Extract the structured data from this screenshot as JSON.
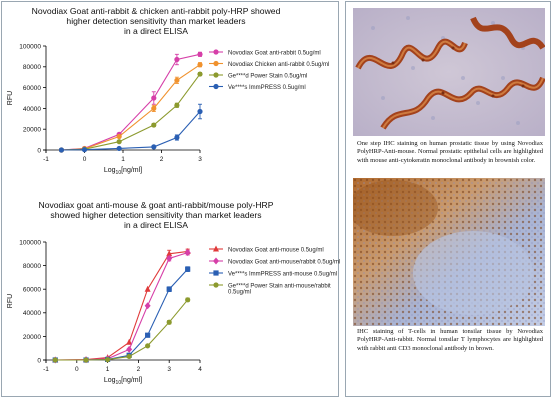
{
  "charts": [
    {
      "title_lines": [
        "Novodiax Goat anti-rabbit & chicken anti-rabbit poly-HRP showed",
        "higher detection sensitivity than market leaders",
        "in a direct ELISA"
      ],
      "xlabel_main": "Log",
      "xlabel_sub": "10",
      "xlabel_tail": "[ng/ml]",
      "ylabel": "RFU",
      "xticks": [
        "-1",
        "0",
        "1",
        "2",
        "3"
      ],
      "yticks": [
        "0",
        "20000",
        "40000",
        "60000",
        "80000",
        "100000"
      ],
      "legend": [
        "Novodiax Goat anti-rabbit 0.5ug/ml",
        "Novodiax Chicken anti-rabbit 0.5ug/ml",
        "Ge****d Power Stain 0.5ug/ml",
        "Ve****s ImmPRESS 0.5ug/ml"
      ]
    },
    {
      "title_lines": [
        "Novodiax goat anti-mouse & goat anti-rabbit/mouse poly-HRP",
        "showed higher detection sensitivity than market leaders",
        "in a direct ELISA"
      ],
      "xlabel_main": "Log",
      "xlabel_sub": "10",
      "xlabel_tail": "[ng/ml]",
      "ylabel": "RFU",
      "xticks": [
        "-1",
        "0",
        "1",
        "2",
        "3",
        "4"
      ],
      "yticks": [
        "0",
        "20000",
        "40000",
        "60000",
        "80000",
        "100000"
      ],
      "legend": [
        "Novodiax Goat anti-mouse 0.5ug/ml",
        "Novodiax Goat anti-mouse/rabbit 0.5ug/ml",
        "Ve****s ImmPRESS anti-mouse 0.5ug/ml",
        "Ge****d Power Stain anti-mouse/rabbit",
        "0.5ug/ml"
      ]
    }
  ],
  "chart_data": [
    {
      "type": "line",
      "title": "Novodiax Goat anti-rabbit & chicken anti-rabbit poly-HRP showed higher detection sensitivity than market leaders in a direct ELISA",
      "xlabel": "Log10[ng/ml]",
      "ylabel": "RFU",
      "xlim": [
        -1,
        3
      ],
      "ylim": [
        0,
        100000
      ],
      "series": [
        {
          "name": "Novodiax Goat anti-rabbit 0.5ug/ml",
          "color": "#d63fa8",
          "marker": "circle",
          "x": [
            -0.6,
            0,
            0.9,
            1.8,
            2.4,
            3.0
          ],
          "y": [
            0,
            1500,
            15000,
            50000,
            87000,
            92000
          ],
          "err": [
            0,
            0,
            0,
            6000,
            5000,
            2000
          ]
        },
        {
          "name": "Novodiax Chicken anti-rabbit 0.5ug/ml",
          "color": "#f0922e",
          "marker": "circle",
          "x": [
            -0.6,
            0,
            0.9,
            1.8,
            2.4,
            3.0
          ],
          "y": [
            0,
            1200,
            13000,
            40000,
            67000,
            82000
          ],
          "err": [
            0,
            0,
            0,
            3000,
            3000,
            2000
          ]
        },
        {
          "name": "Ge****d Power Stain 0.5ug/ml",
          "color": "#8c9a2e",
          "marker": "circle",
          "x": [
            -0.6,
            0,
            0.9,
            1.8,
            2.4,
            3.0
          ],
          "y": [
            0,
            800,
            8000,
            24000,
            43000,
            73000
          ],
          "err": [
            0,
            0,
            0,
            1500,
            2000,
            1500
          ]
        },
        {
          "name": "Ve****s ImmPRESS 0.5ug/ml",
          "color": "#2a5fb3",
          "marker": "circle",
          "x": [
            -0.6,
            0,
            0.9,
            1.8,
            2.4,
            3.0
          ],
          "y": [
            0,
            300,
            1500,
            3000,
            12000,
            37000
          ],
          "err": [
            0,
            0,
            0,
            0,
            2500,
            7000
          ]
        }
      ]
    },
    {
      "type": "line",
      "title": "Novodiax goat anti-mouse & goat anti-rabbit/mouse poly-HRP showed higher detection sensitivity than market leaders in a direct ELISA",
      "xlabel": "Log10[ng/ml]",
      "ylabel": "RFU",
      "xlim": [
        -1,
        4
      ],
      "ylim": [
        0,
        100000
      ],
      "series": [
        {
          "name": "Novodiax Goat anti-mouse 0.5ug/ml",
          "color": "#e03a3a",
          "marker": "triangle",
          "x": [
            -0.7,
            0.3,
            1.0,
            1.7,
            2.3,
            3.0,
            3.6
          ],
          "y": [
            0,
            300,
            2000,
            15000,
            60000,
            90000,
            92000
          ],
          "err": [
            0,
            0,
            0,
            0,
            0,
            3000,
            2000
          ]
        },
        {
          "name": "Novodiax Goat anti-mouse/rabbit 0.5ug/ml",
          "color": "#d63fa8",
          "marker": "diamond",
          "x": [
            -0.7,
            0.3,
            1.0,
            1.7,
            2.3,
            3.0,
            3.6
          ],
          "y": [
            0,
            200,
            1000,
            9000,
            46000,
            86000,
            91000
          ],
          "err": [
            0,
            0,
            0,
            0,
            0,
            2000,
            2000
          ]
        },
        {
          "name": "Ve****s ImmPRESS anti-mouse 0.5ug/ml",
          "color": "#2a5fb3",
          "marker": "square",
          "x": [
            -0.7,
            0.3,
            1.0,
            1.7,
            2.3,
            3.0,
            3.6
          ],
          "y": [
            0,
            0,
            500,
            4000,
            21000,
            60000,
            77000
          ],
          "err": [
            0,
            0,
            0,
            0,
            0,
            2000,
            2000
          ]
        },
        {
          "name": "Ge****d Power Stain anti-mouse/rabbit 0.5ug/ml",
          "color": "#8c9a2e",
          "marker": "circle",
          "x": [
            -0.7,
            0.3,
            1.0,
            1.7,
            2.3,
            3.0,
            3.6
          ],
          "y": [
            0,
            0,
            300,
            3000,
            12000,
            32000,
            51000
          ],
          "err": [
            0,
            0,
            0,
            0,
            0,
            1500,
            1500
          ]
        }
      ]
    }
  ],
  "photos": [
    {
      "caption": "One step IHC staining on human prostatic tissue by using Novodiax PolyHRP-Anti-mouse. Normal prostatic epithelial cells are highlighted with mouse anti-cytokeratin monoclonal antibody in brownish color."
    },
    {
      "caption": "IHC staining of T-cells in human tonsilar tissue by Novodiax PolyHRP-Anti-rabbit. Normal tonsilar T lymphocytes are highlighted with rabbit anti CD3 monoclonal antibody in brown."
    }
  ]
}
